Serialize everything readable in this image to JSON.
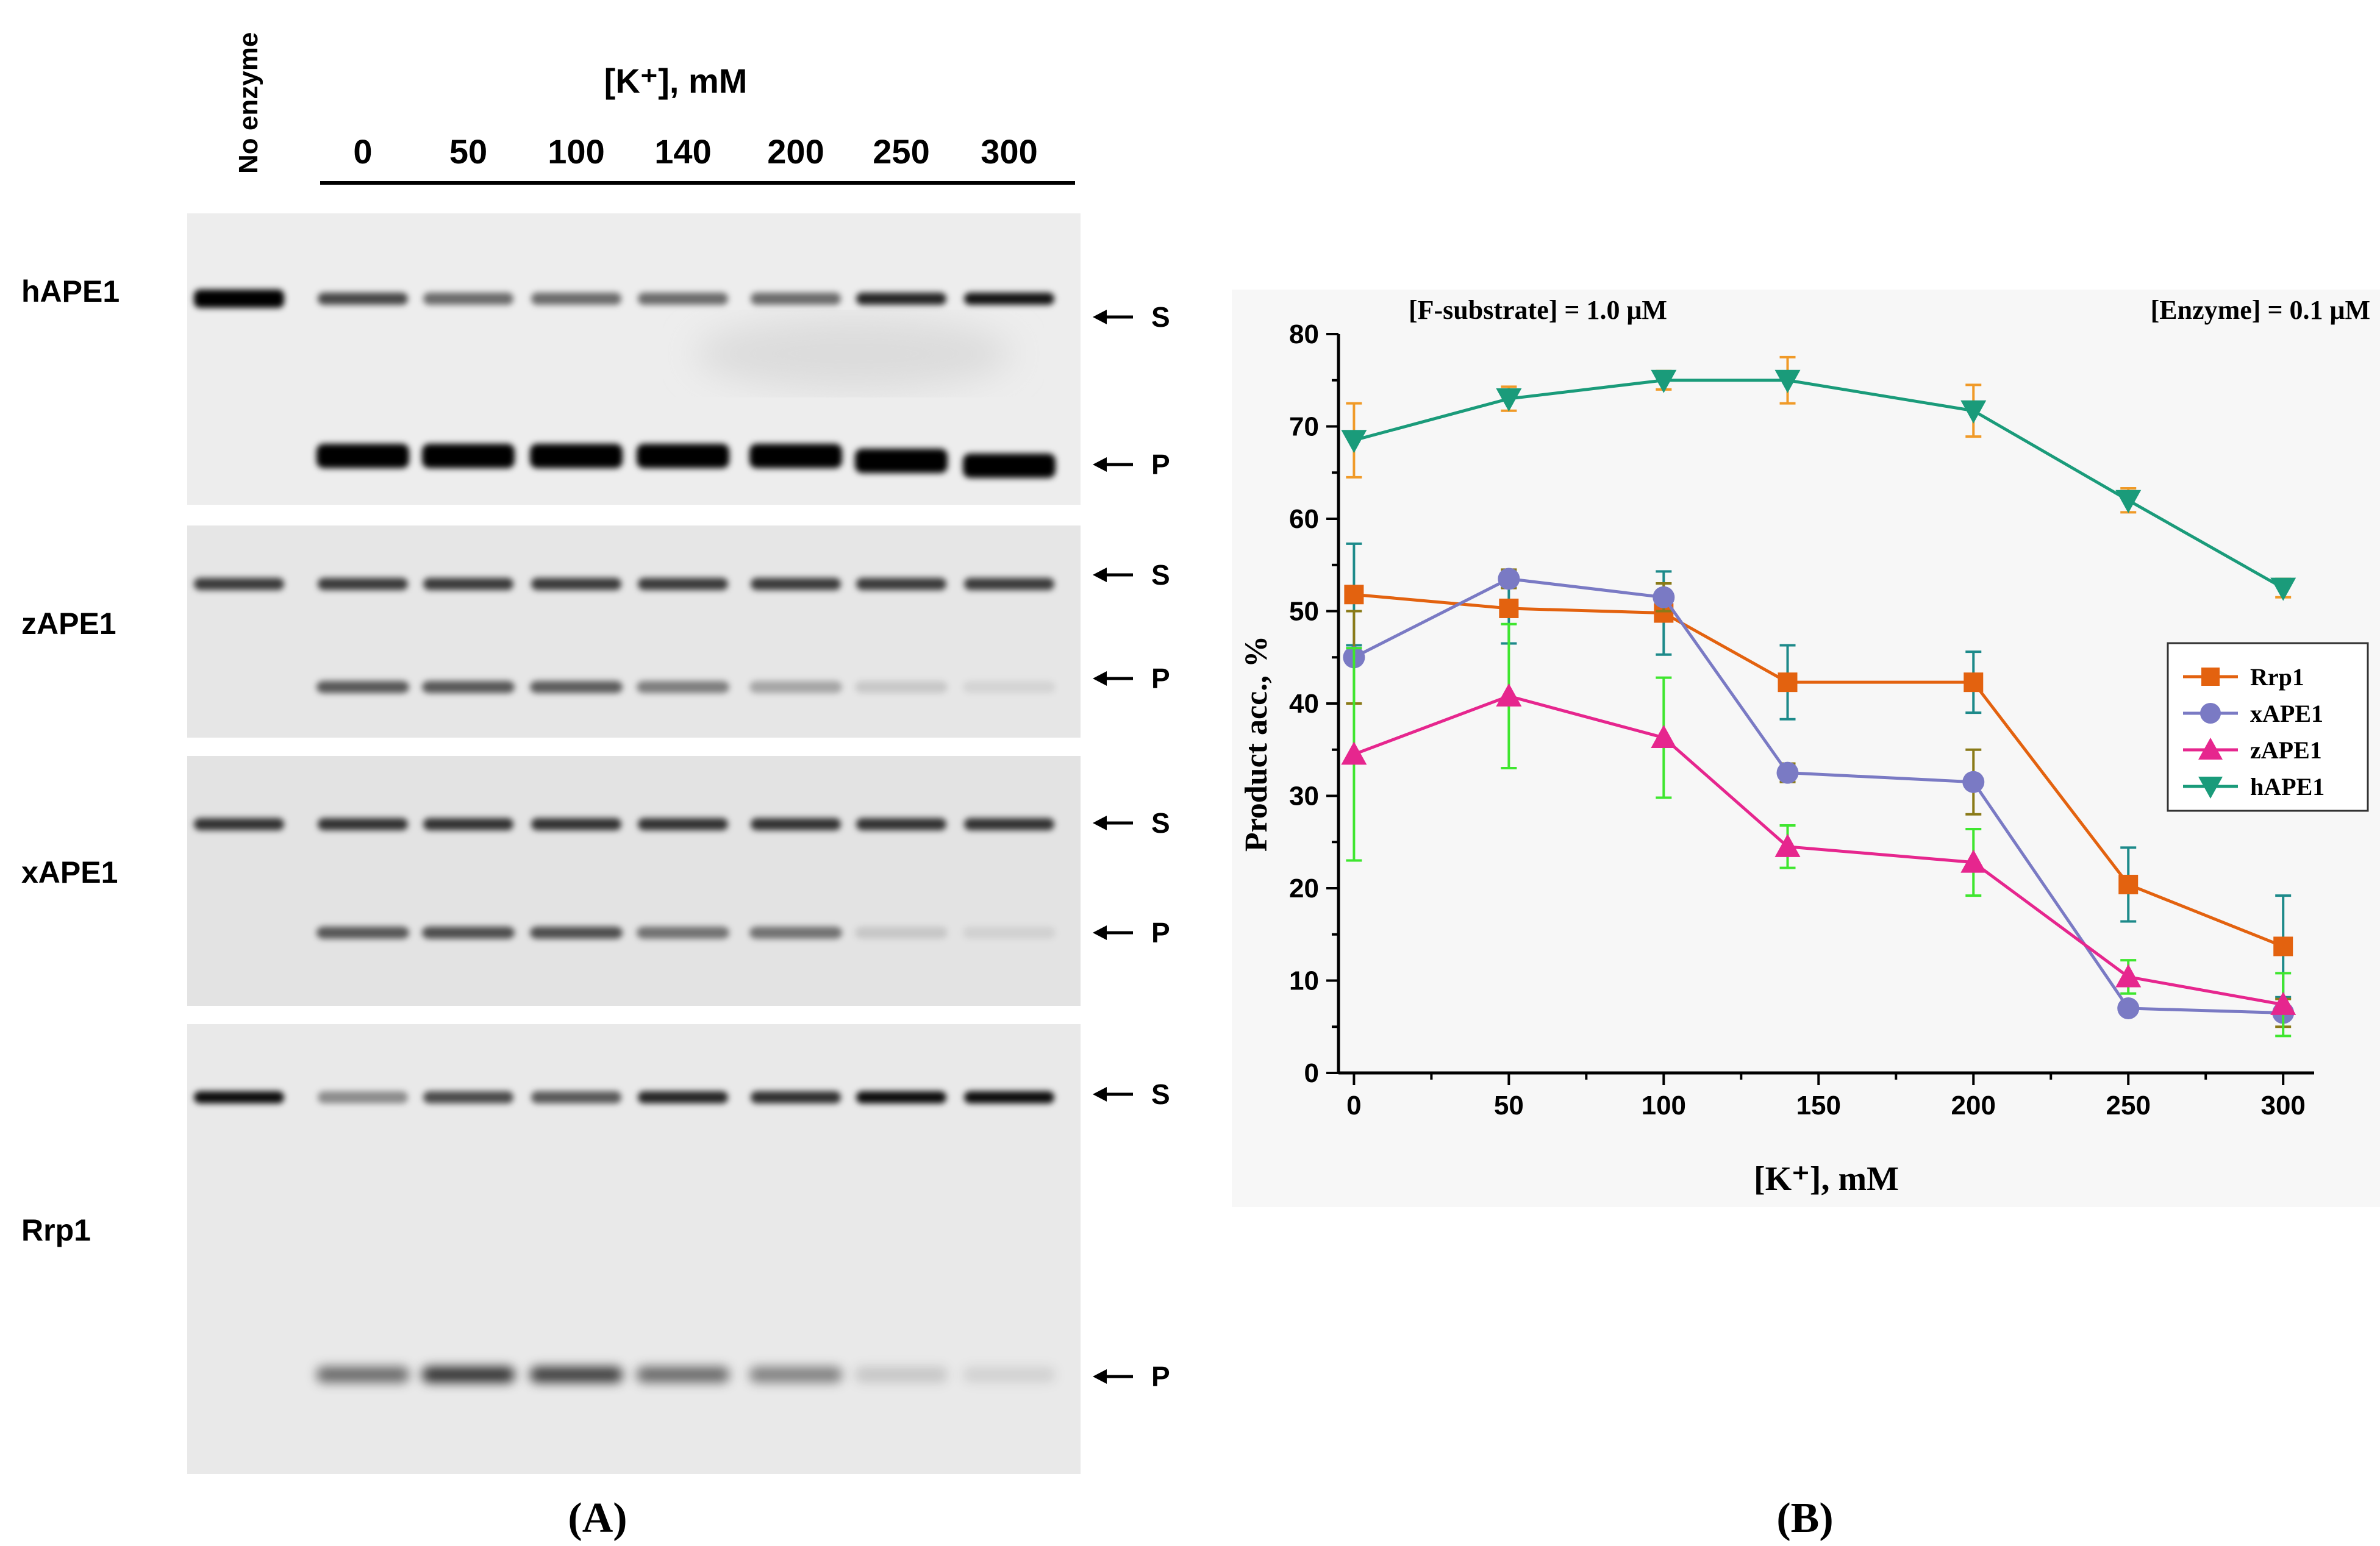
{
  "gel": {
    "no_enzyme_label": "No enzyme",
    "conc_title": "[K⁺], mM",
    "lane_concs": [
      "0",
      "50",
      "100",
      "140",
      "200",
      "250",
      "300"
    ],
    "panels": [
      {
        "name": "hAPE1",
        "s_label": "S",
        "p_label": "P"
      },
      {
        "name": "zAPE1",
        "s_label": "S",
        "p_label": "P"
      },
      {
        "name": "xAPE1",
        "s_label": "S",
        "p_label": "P"
      },
      {
        "name": "Rrp1",
        "s_label": "S",
        "p_label": "P"
      }
    ],
    "panel_caption": "(A)"
  },
  "chart_data": {
    "type": "line",
    "annotation_left": "[F-substrate] = 1.0 μM",
    "annotation_right": "[Enzyme] = 0.1 μM",
    "xlabel": "[K⁺], mM",
    "ylabel": "Product acc., %",
    "x": [
      0,
      50,
      100,
      140,
      200,
      250,
      300
    ],
    "xlim": [
      -5,
      310
    ],
    "ylim": [
      0,
      80
    ],
    "xticks": [
      0,
      50,
      100,
      150,
      200,
      250,
      300
    ],
    "yticks": [
      0,
      10,
      20,
      30,
      40,
      50,
      60,
      70,
      80
    ],
    "legend_position": "right-middle",
    "grid": false,
    "series": [
      {
        "name": "Rrp1",
        "marker": "square",
        "color": "#e3620f",
        "error_color": "#1d8a8a",
        "values": [
          51.8,
          50.3,
          49.8,
          42.3,
          42.3,
          20.4,
          13.7
        ],
        "errors": [
          5.5,
          3.8,
          4.5,
          4.0,
          3.3,
          4.0,
          5.5
        ]
      },
      {
        "name": "xAPE1",
        "marker": "circle",
        "color": "#7a7ac4",
        "error_color": "#8a7a18",
        "values": [
          45.0,
          53.5,
          51.5,
          32.5,
          31.5,
          7.0,
          6.5
        ],
        "errors": [
          5.0,
          1.0,
          1.5,
          1.0,
          3.5,
          0.5,
          1.5
        ]
      },
      {
        "name": "zAPE1",
        "marker": "triangle-up",
        "color": "#e6268e",
        "error_color": "#3fe62f",
        "values": [
          34.5,
          40.8,
          36.3,
          24.5,
          22.8,
          10.4,
          7.4
        ],
        "errors": [
          11.5,
          7.8,
          6.5,
          2.3,
          3.6,
          1.8,
          3.4
        ]
      },
      {
        "name": "hAPE1",
        "marker": "triangle-down",
        "color": "#1a9b7a",
        "error_color": "#f09a28",
        "values": [
          68.5,
          73.0,
          75.0,
          75.0,
          71.7,
          62.0,
          52.5
        ],
        "errors": [
          4.0,
          1.3,
          1.0,
          2.5,
          2.8,
          1.3,
          1.0
        ]
      }
    ],
    "panel_caption": "(B)"
  }
}
